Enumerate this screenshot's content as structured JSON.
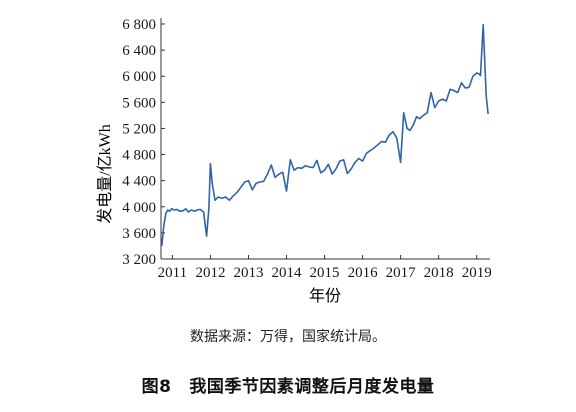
{
  "source_note": "数据来源：万得，国家统计局。",
  "figure": {
    "number": "图8",
    "title": "我国季节因素调整后月度发电量"
  },
  "colors": {
    "line": "#2f64a8",
    "axis": "#333333"
  },
  "chart_data": {
    "type": "line",
    "title": "",
    "xlabel": "年份",
    "ylabel": "发电量/亿kWh",
    "ylim": [
      3200,
      6800
    ],
    "yticks": [
      3200,
      3600,
      4000,
      4400,
      4800,
      5200,
      5600,
      6000,
      6400,
      6800
    ],
    "ytick_labels": [
      "3 200",
      "3 600",
      "4 000",
      "4 400",
      "4 800",
      "5 200",
      "5 600",
      "6 000",
      "6 400",
      "6 800"
    ],
    "xlim": [
      2010.7,
      2019.35
    ],
    "xticks": [
      2011,
      2012,
      2013,
      2014,
      2015,
      2016,
      2017,
      2018,
      2019
    ],
    "xtick_labels": [
      "2011",
      "2012",
      "2013",
      "2014",
      "2015",
      "2016",
      "2017",
      "2018",
      "2019"
    ],
    "x": [
      2010.72,
      2010.77,
      2010.83,
      2010.88,
      2010.93,
      2010.98,
      2011.05,
      2011.12,
      2011.2,
      2011.28,
      2011.35,
      2011.42,
      2011.5,
      2011.58,
      2011.65,
      2011.73,
      2011.82,
      2011.9,
      2011.96,
      2012.0,
      2012.05,
      2012.12,
      2012.2,
      2012.3,
      2012.4,
      2012.5,
      2012.6,
      2012.7,
      2012.8,
      2012.9,
      2013.0,
      2013.1,
      2013.2,
      2013.3,
      2013.4,
      2013.5,
      2013.6,
      2013.7,
      2013.8,
      2013.9,
      2014.0,
      2014.1,
      2014.2,
      2014.3,
      2014.4,
      2014.5,
      2014.6,
      2014.7,
      2014.8,
      2014.9,
      2015.0,
      2015.1,
      2015.2,
      2015.3,
      2015.4,
      2015.5,
      2015.6,
      2015.7,
      2015.8,
      2015.9,
      2016.0,
      2016.1,
      2016.2,
      2016.3,
      2016.4,
      2016.5,
      2016.6,
      2016.7,
      2016.8,
      2016.9,
      2017.0,
      2017.08,
      2017.17,
      2017.25,
      2017.33,
      2017.42,
      2017.5,
      2017.6,
      2017.7,
      2017.8,
      2017.9,
      2018.0,
      2018.1,
      2018.2,
      2018.3,
      2018.4,
      2018.5,
      2018.6,
      2018.7,
      2018.8,
      2018.9,
      2019.0,
      2019.05,
      2019.1,
      2019.17,
      2019.25,
      2019.3
    ],
    "y": [
      3400,
      3700,
      3900,
      3950,
      3930,
      3970,
      3950,
      3960,
      3930,
      3940,
      3970,
      3920,
      3950,
      3930,
      3950,
      3960,
      3920,
      3550,
      3980,
      4660,
      4350,
      4100,
      4150,
      4130,
      4150,
      4100,
      4170,
      4220,
      4300,
      4380,
      4400,
      4260,
      4360,
      4380,
      4390,
      4500,
      4640,
      4450,
      4500,
      4530,
      4240,
      4720,
      4560,
      4600,
      4590,
      4630,
      4610,
      4600,
      4710,
      4520,
      4560,
      4650,
      4500,
      4580,
      4700,
      4720,
      4510,
      4580,
      4680,
      4740,
      4700,
      4820,
      4860,
      4900,
      4950,
      5000,
      4990,
      5100,
      5150,
      5050,
      4680,
      5440,
      5200,
      5170,
      5250,
      5380,
      5350,
      5400,
      5440,
      5750,
      5520,
      5620,
      5650,
      5620,
      5800,
      5780,
      5750,
      5900,
      5820,
      5830,
      6000,
      6050,
      6040,
      6010,
      6790,
      5700,
      5420
    ]
  }
}
